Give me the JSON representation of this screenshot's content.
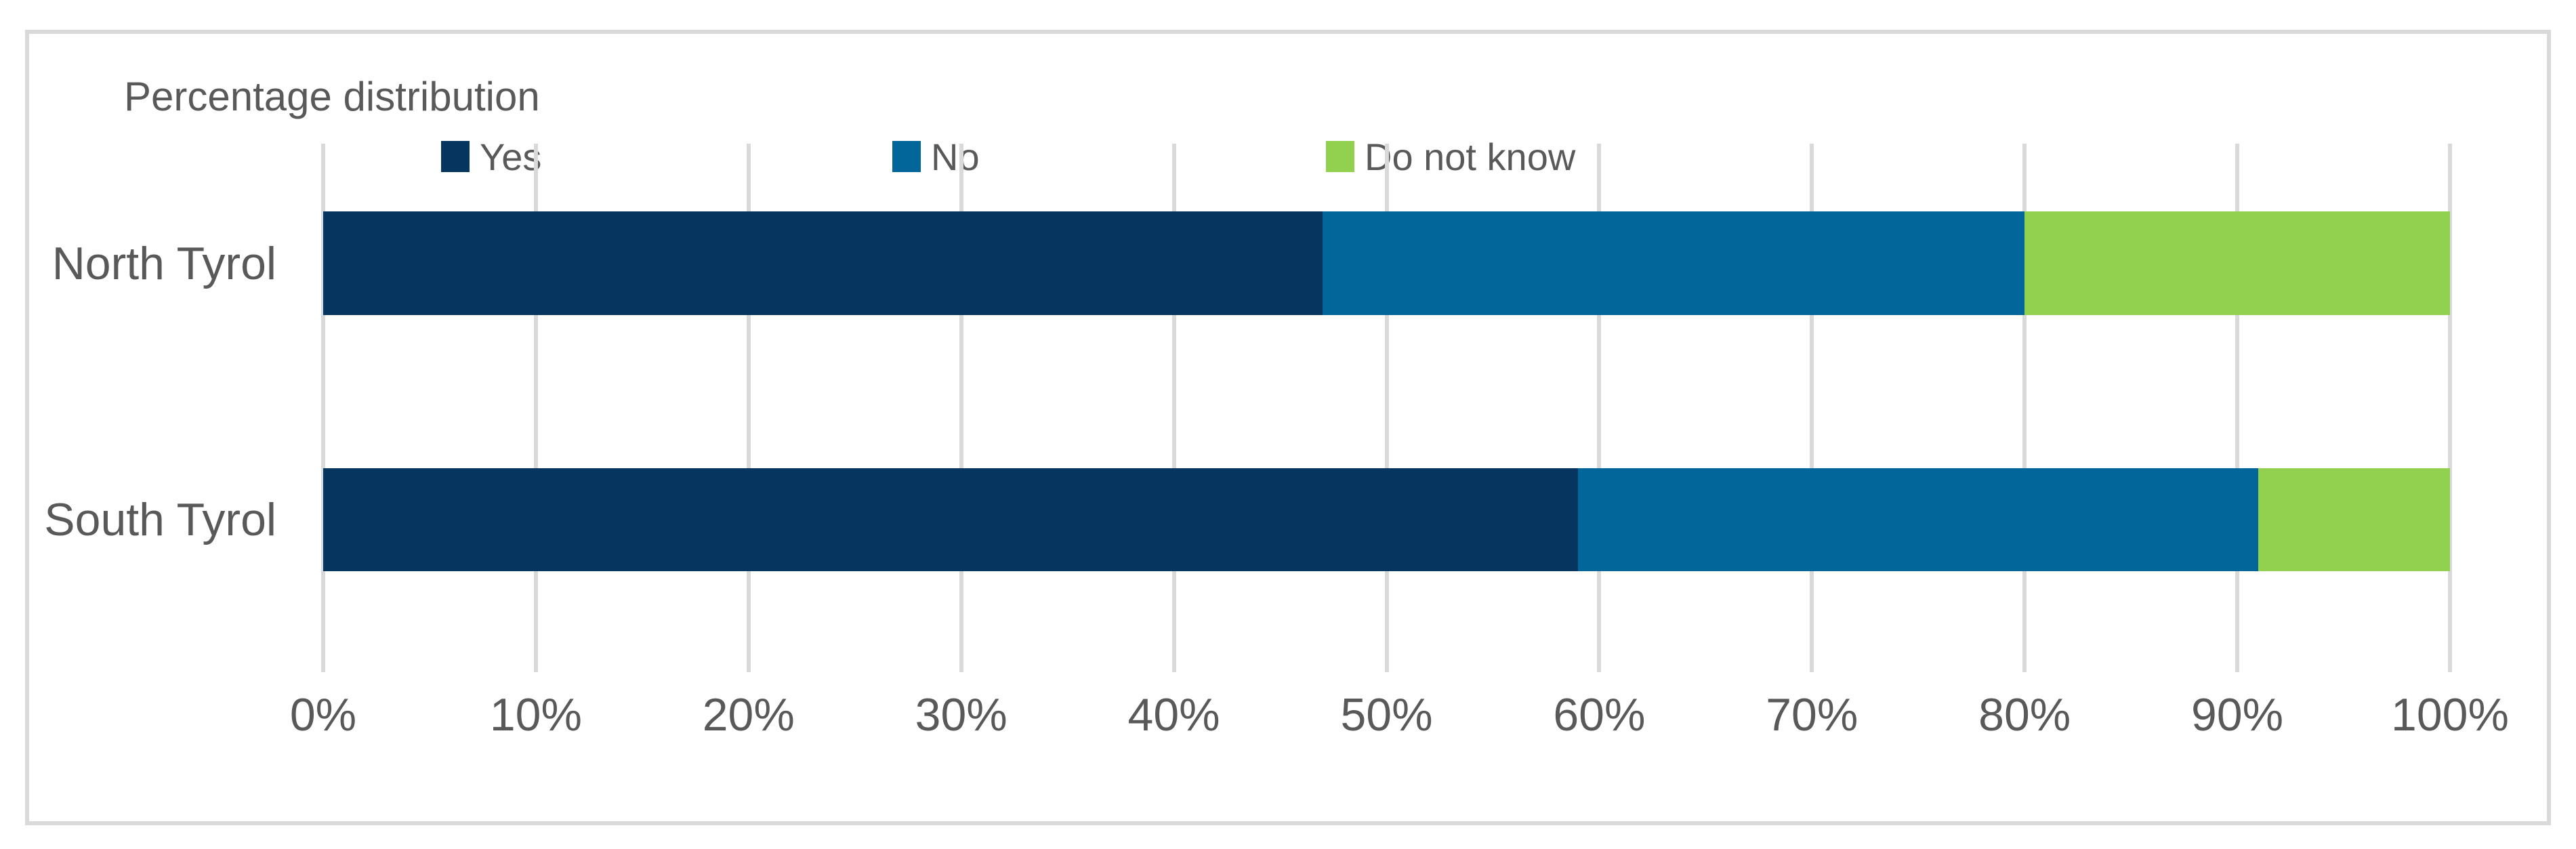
{
  "chart_data": {
    "type": "bar",
    "variant": "horizontal-stacked",
    "title": "Percentage distribution",
    "categories": [
      "North Tyrol",
      "South Tyrol"
    ],
    "series": [
      {
        "name": "Yes",
        "color": "#063560",
        "values": [
          47,
          59
        ]
      },
      {
        "name": "No",
        "color": "#02669B",
        "values": [
          33,
          32
        ]
      },
      {
        "name": "Do not know",
        "color": "#92D050",
        "values": [
          20,
          9
        ]
      }
    ],
    "x_axis": {
      "min": 0,
      "max": 100,
      "tick_step": 10,
      "tick_labels": [
        "0%",
        "10%",
        "20%",
        "30%",
        "40%",
        "50%",
        "60%",
        "70%",
        "80%",
        "90%",
        "100%"
      ]
    },
    "legend_position": "top",
    "grid": "vertical-only",
    "colors": {
      "text": "#595959",
      "gridline": "#D9D9D9",
      "frame_border": "#D9D9D9",
      "background": "#FFFFFF"
    }
  }
}
